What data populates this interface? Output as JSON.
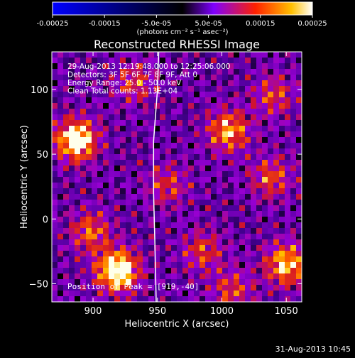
{
  "colorbar": {
    "ticks": [
      "-0.00025",
      "-0.00015",
      "-5.0e-05",
      "5.0e-05",
      "0.00015",
      "0.00025"
    ],
    "tick_values": [
      -0.00025,
      -0.00015,
      -5e-05,
      5e-05,
      0.00015,
      0.00025
    ],
    "range": [
      -0.00025,
      0.00025
    ],
    "units": "(photons cm⁻² s⁻¹ asec⁻²)",
    "colors": [
      "#0000ff",
      "#000000",
      "#7f00ff",
      "#ff2000",
      "#ffc000",
      "#ffffff"
    ]
  },
  "chart_data": {
    "type": "heatmap",
    "title": "Reconstructed RHESSI Image",
    "xlabel": "Heliocentric X (arcsec)",
    "ylabel": "Heliocentric Y (arcsec)",
    "xlim": [
      868,
      1062
    ],
    "ylim": [
      -64,
      129
    ],
    "xticks": [
      900,
      950,
      1000,
      1050
    ],
    "yticks": [
      -50,
      0,
      50,
      100
    ],
    "x_tick_labels": [
      "900",
      "950",
      "1000",
      "1050"
    ],
    "y_tick_labels": [
      "−50",
      "0",
      "50",
      "100"
    ],
    "annotations": [
      "29-Aug-2013 12:19:48.000 to 12:25:06.000",
      "Detectors: 3F 5F 6F 7F 8F 9F, Att 0",
      "Energy Range: 25.0 - 50.0 keV",
      "Clean     Total counts: 1.13E+04"
    ],
    "peak_label": "Position of Peak = [919,-40]",
    "peak": [
      919,
      -40
    ],
    "limb_line": [
      [
        951,
        129
      ],
      [
        950,
        100
      ],
      [
        947,
        60
      ],
      [
        947,
        20
      ],
      [
        948,
        -20
      ],
      [
        949,
        -64
      ]
    ],
    "hotspots": [
      {
        "x": 887,
        "y": 61,
        "value": 0.00023
      },
      {
        "x": 919,
        "y": -40,
        "value": 0.00025
      },
      {
        "x": 898,
        "y": -10,
        "value": 0.00012
      },
      {
        "x": 1005,
        "y": 68,
        "value": 0.00016
      },
      {
        "x": 1050,
        "y": -35,
        "value": 0.00018
      },
      {
        "x": 1038,
        "y": 32,
        "value": 0.00011
      },
      {
        "x": 985,
        "y": -25,
        "value": 0.0001
      },
      {
        "x": 932,
        "y": 105,
        "value": 0.0001
      },
      {
        "x": 958,
        "y": 26,
        "value": 9e-05
      },
      {
        "x": 1040,
        "y": 95,
        "value": 0.0001
      },
      {
        "x": 1008,
        "y": -55,
        "value": 0.0001
      }
    ]
  },
  "footer": {
    "timestamp": "31-Aug-2013 10:45"
  }
}
